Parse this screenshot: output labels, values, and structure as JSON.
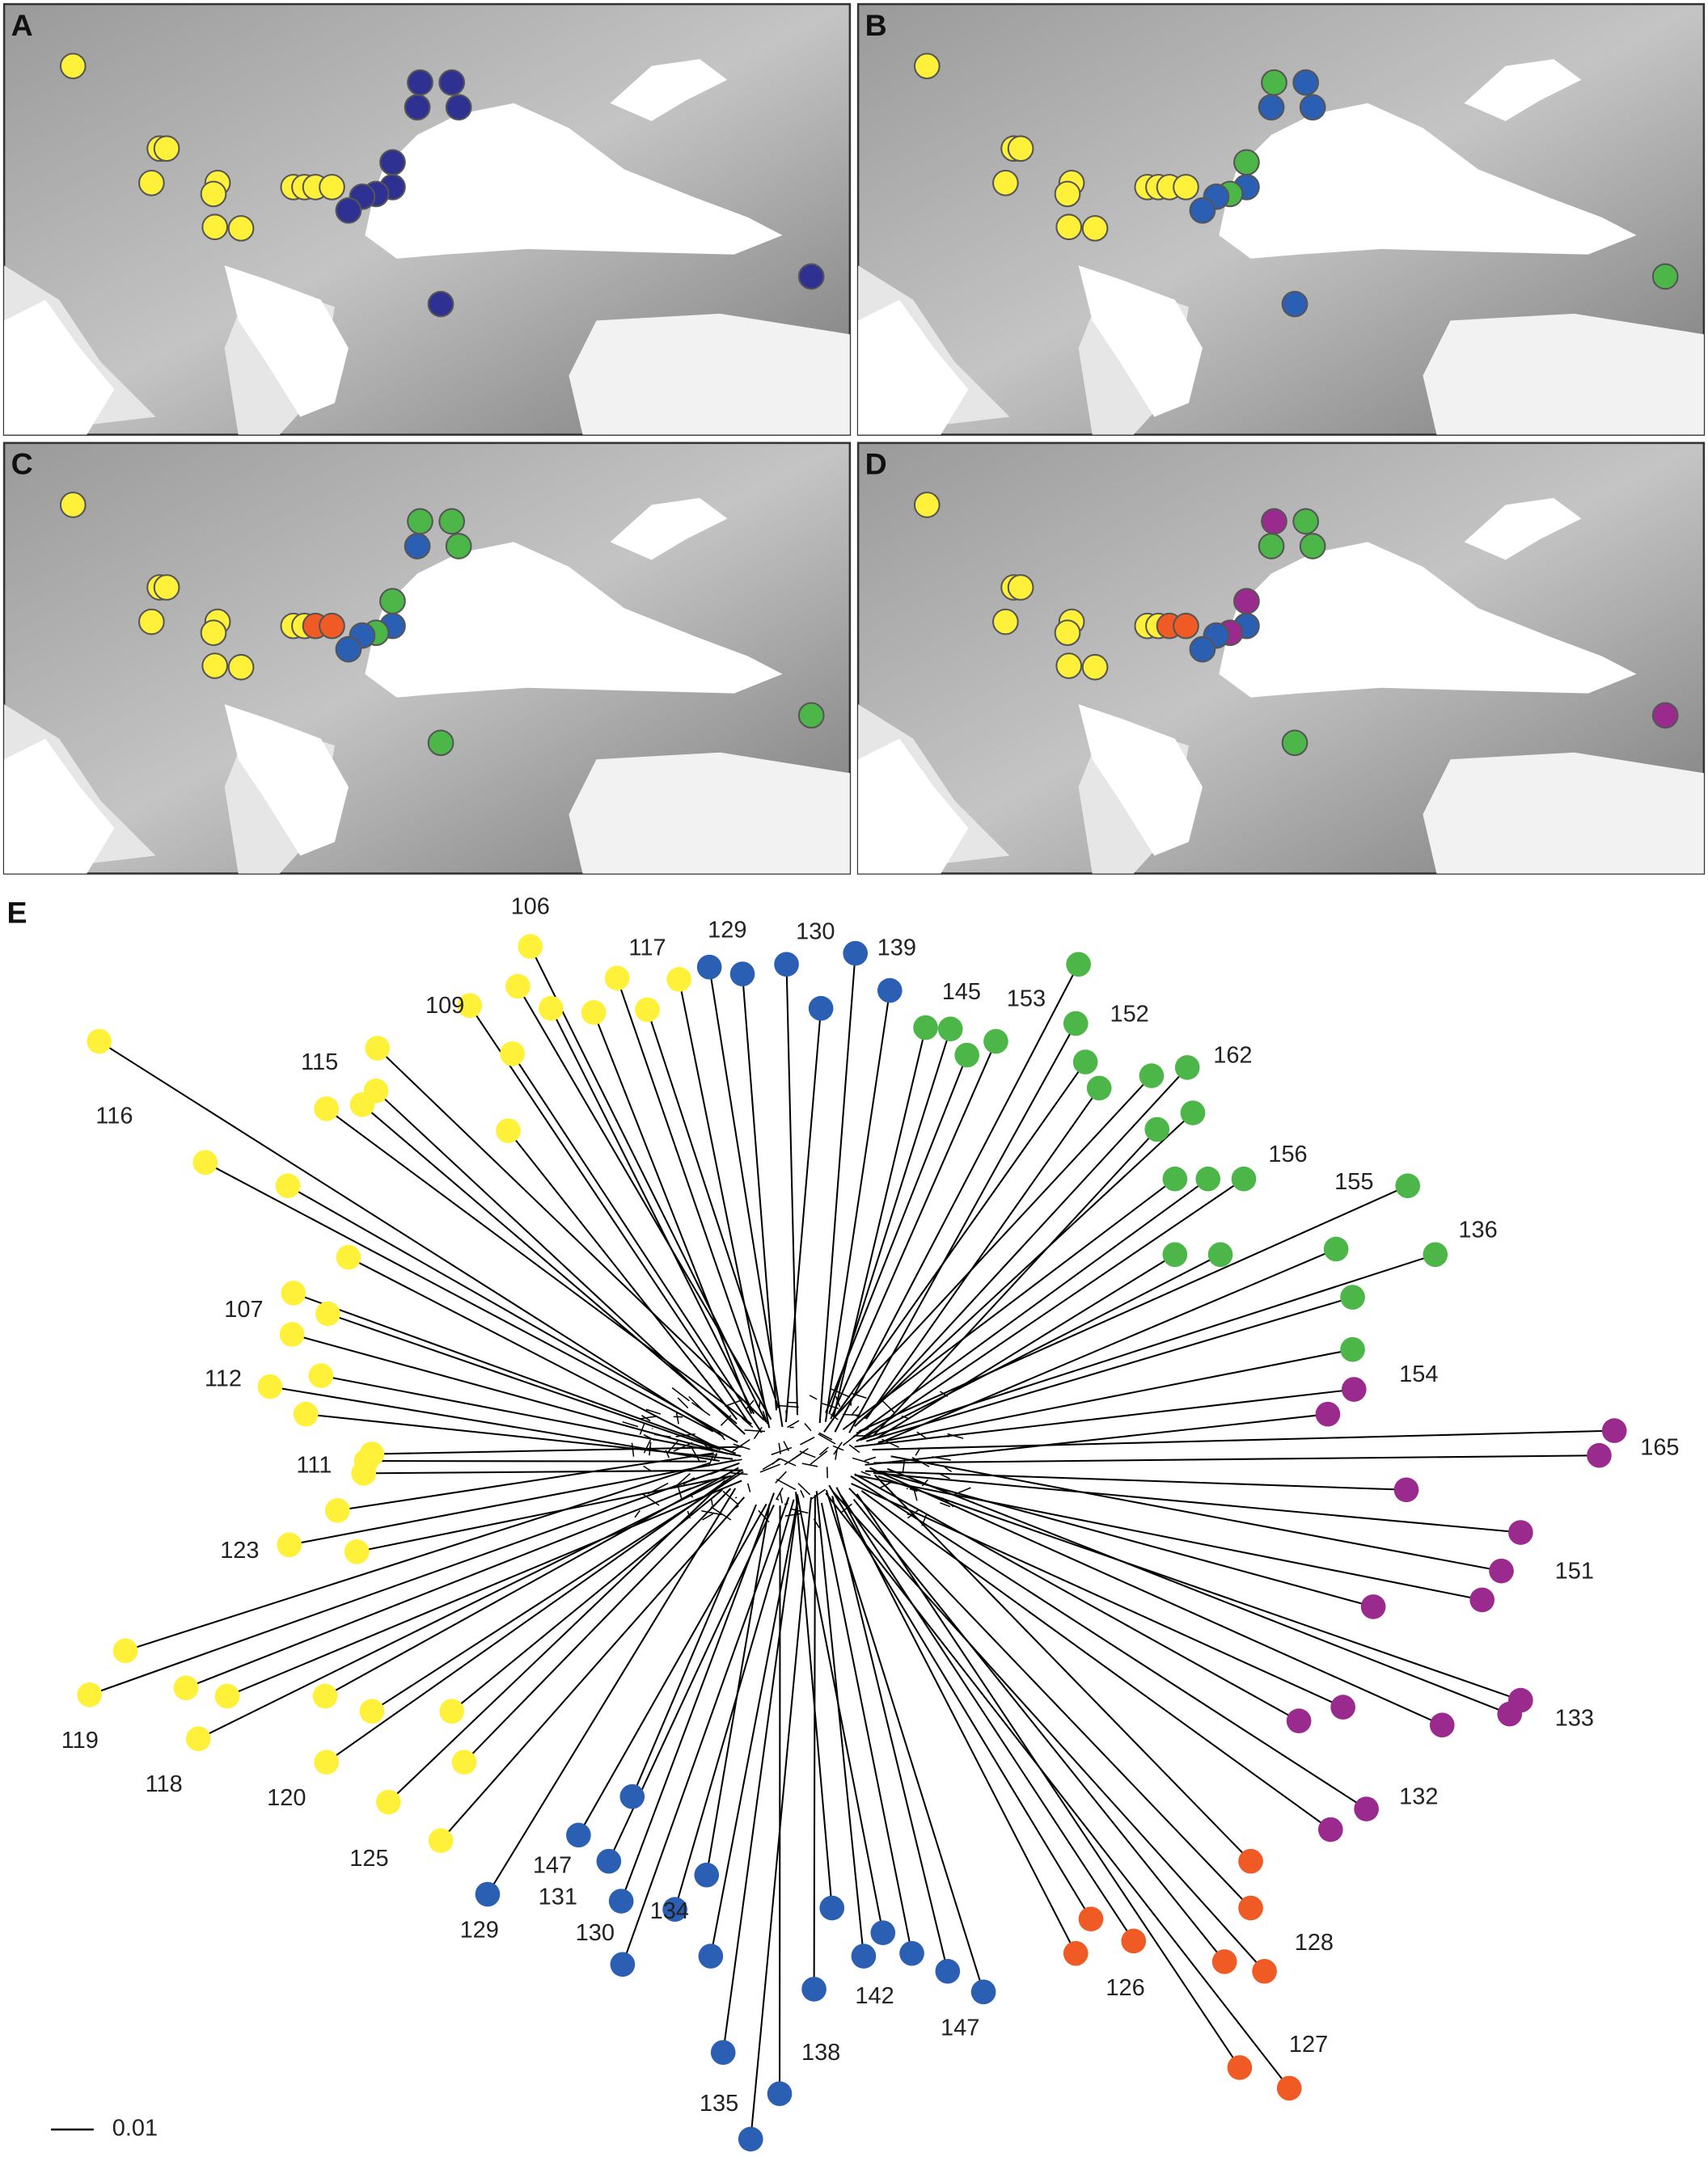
{
  "panels": [
    {
      "label": "A"
    },
    {
      "label": "B"
    },
    {
      "label": "C"
    },
    {
      "label": "D"
    }
  ],
  "tree": {
    "label": "E",
    "node_labels": [
      "106",
      "117",
      "129",
      "130",
      "139",
      "145",
      "153",
      "152",
      "162",
      "109",
      "115",
      "116",
      "156",
      "155",
      "136",
      "107",
      "154",
      "112",
      "165",
      "111",
      "123",
      "151",
      "119",
      "118",
      "120",
      "125",
      "133",
      "132",
      "147",
      "131",
      "129",
      "130",
      "134",
      "142",
      "147",
      "128",
      "126",
      "127",
      "138",
      "135"
    ],
    "scale_bar": "0.01"
  }
}
